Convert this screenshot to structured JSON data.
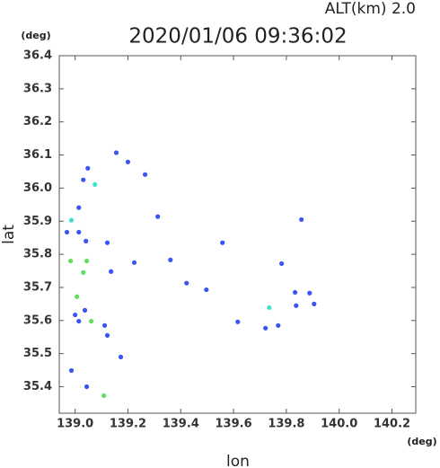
{
  "chart_data": {
    "type": "scatter",
    "title": "2020/01/06 09:36:02",
    "altitude_label": "ALT(km) 2.0",
    "x_unit": "(deg)",
    "y_unit": "(deg)",
    "xlabel": "lon",
    "ylabel": "lat",
    "xlim": [
      138.94,
      140.29
    ],
    "ylim": [
      35.32,
      36.4
    ],
    "xticks": [
      {
        "value": 139.0,
        "label": "139.0"
      },
      139.2,
      139.4,
      139.6,
      139.8,
      {
        "value": 140.0,
        "label": "140.0"
      },
      140.2
    ],
    "yticks": [
      35.4,
      35.5,
      35.6,
      35.7,
      35.8,
      35.9,
      {
        "value": 36.0,
        "label": "36.0"
      },
      36.1,
      36.2,
      36.3,
      36.4
    ],
    "series": [
      {
        "color": "#3a55f0",
        "x": [
          139.048,
          139.031,
          139.014,
          139.156,
          139.2,
          139.265,
          139.313,
          138.969,
          139.014,
          139.041,
          139.122,
          139.224,
          139.361,
          139.136,
          139.037,
          139.0,
          139.014,
          139.112,
          139.122,
          139.173,
          138.986,
          139.044,
          139.422,
          139.497,
          139.558,
          139.616,
          139.782,
          139.857,
          139.837,
          139.888,
          139.833,
          139.769,
          139.721,
          139.905
        ],
        "values": [
          36.06,
          36.025,
          35.941,
          36.107,
          36.079,
          36.041,
          35.914,
          35.867,
          35.867,
          35.84,
          35.835,
          35.775,
          35.783,
          35.748,
          35.631,
          35.617,
          35.598,
          35.585,
          35.555,
          35.49,
          35.449,
          35.4,
          35.713,
          35.693,
          35.835,
          35.596,
          35.772,
          35.905,
          35.645,
          35.683,
          35.685,
          35.585,
          35.577,
          35.65
        ]
      },
      {
        "color": "#40e0d0",
        "x": [
          139.075,
          138.986,
          139.735
        ],
        "values": [
          36.011,
          35.903,
          35.639
        ]
      },
      {
        "color": "#60e060",
        "x": [
          138.983,
          139.044,
          139.031,
          139.007,
          139.061,
          139.109
        ],
        "values": [
          35.78,
          35.78,
          35.745,
          35.672,
          35.598,
          35.373
        ]
      }
    ]
  }
}
